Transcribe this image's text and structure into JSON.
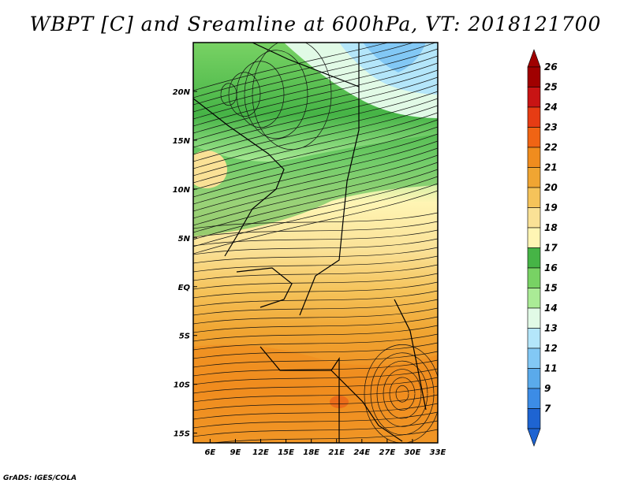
{
  "title": "WBPT [C] and Sreamline at 600hPa, VT: 2018121700",
  "credit": "GrADS: IGES/COLA",
  "map": {
    "lon_range": [
      4,
      33
    ],
    "lat_range": [
      -16,
      25
    ],
    "lon_ticks": [
      {
        "value": 6,
        "label": "6E"
      },
      {
        "value": 9,
        "label": "9E"
      },
      {
        "value": 12,
        "label": "12E"
      },
      {
        "value": 15,
        "label": "15E"
      },
      {
        "value": 18,
        "label": "18E"
      },
      {
        "value": 21,
        "label": "21E"
      },
      {
        "value": 24,
        "label": "24E"
      },
      {
        "value": 27,
        "label": "27E"
      },
      {
        "value": 30,
        "label": "30E"
      },
      {
        "value": 33,
        "label": "33E"
      }
    ],
    "lat_ticks": [
      {
        "value": 20,
        "label": "20N"
      },
      {
        "value": 15,
        "label": "15N"
      },
      {
        "value": 10,
        "label": "10N"
      },
      {
        "value": 5,
        "label": "5N"
      },
      {
        "value": 0,
        "label": "EQ"
      },
      {
        "value": -5,
        "label": "5S"
      },
      {
        "value": -10,
        "label": "10S"
      },
      {
        "value": -15,
        "label": "15S"
      }
    ]
  },
  "colorbar": {
    "labels": [
      "26",
      "25",
      "24",
      "23",
      "22",
      "21",
      "20",
      "19",
      "18",
      "17",
      "16",
      "15",
      "14",
      "13",
      "12",
      "11",
      "9",
      "7"
    ],
    "colors": [
      "#a00000",
      "#c81414",
      "#e63c14",
      "#f06414",
      "#f08c1e",
      "#f0a532",
      "#f5c35a",
      "#fae196",
      "#fff5b4",
      "#46b446",
      "#78d264",
      "#aaeb96",
      "#e1fae6",
      "#b4e6fa",
      "#82c8f5",
      "#5aaaeb",
      "#3c8ce6",
      "#1e64d2"
    ],
    "top_arrow_color": "#a00000",
    "bottom_arrow_color": "#1e64d2"
  }
}
